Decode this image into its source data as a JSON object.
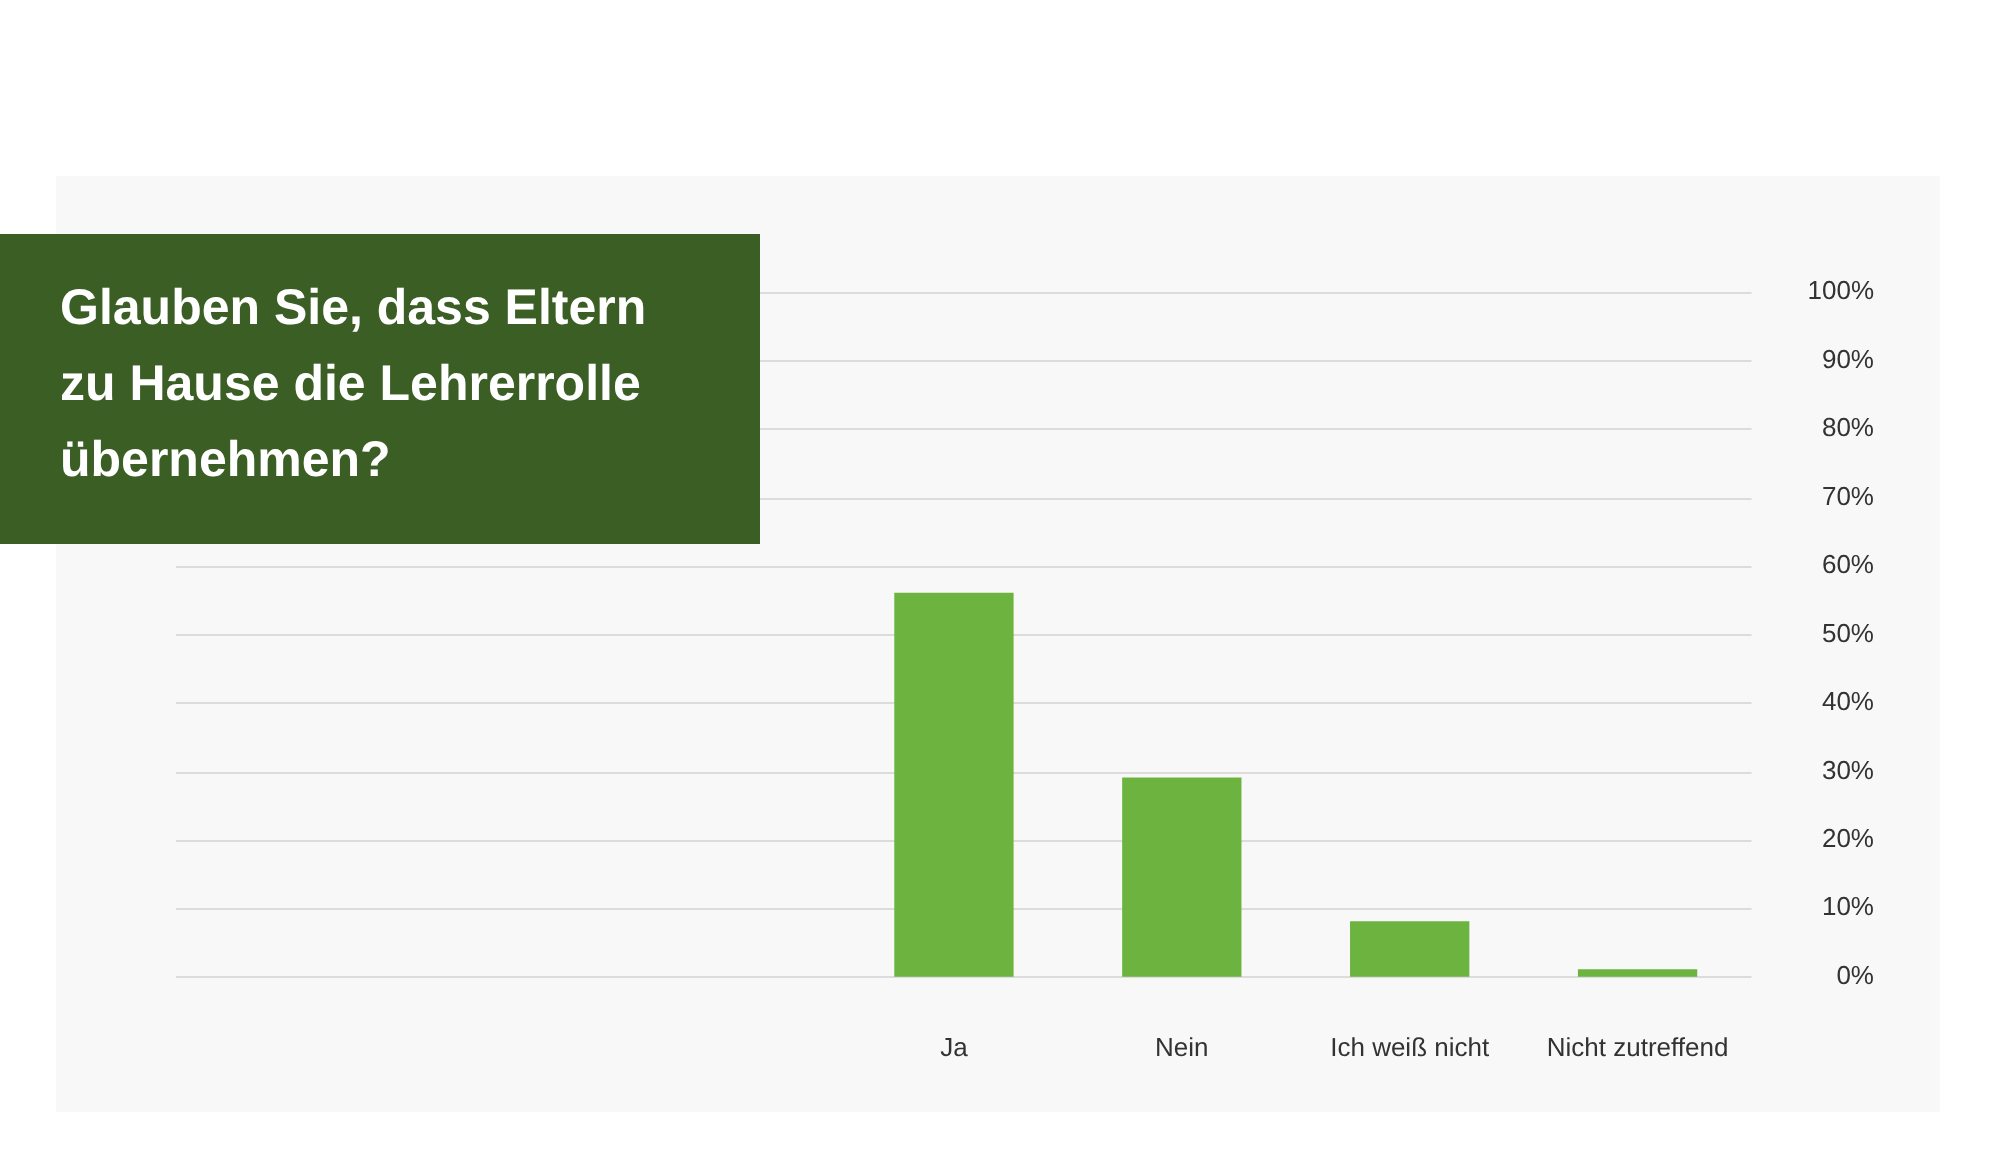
{
  "chart_data": {
    "type": "bar",
    "title": "Glauben Sie, dass Eltern zu Hause die Lehrerrolle übernehmen?",
    "categories": [
      "Ja",
      "Nein",
      "Ich weiß nicht",
      "Nicht zutreffend"
    ],
    "values": [
      56,
      29,
      8,
      1
    ],
    "color": "#6db33f",
    "ylim": [
      0,
      100
    ],
    "yticks": [
      {
        "value": 0,
        "label": "0%"
      },
      {
        "value": 10,
        "label": "10%"
      },
      {
        "value": 20,
        "label": "20%"
      },
      {
        "value": 30,
        "label": "30%"
      },
      {
        "value": 40,
        "label": "40%"
      },
      {
        "value": 50,
        "label": "50%"
      },
      {
        "value": 60,
        "label": "60%"
      },
      {
        "value": 70,
        "label": "70%"
      },
      {
        "value": 80,
        "label": "80%"
      },
      {
        "value": 90,
        "label": "90%"
      },
      {
        "value": 100,
        "label": "100%"
      }
    ],
    "grid": "y"
  }
}
